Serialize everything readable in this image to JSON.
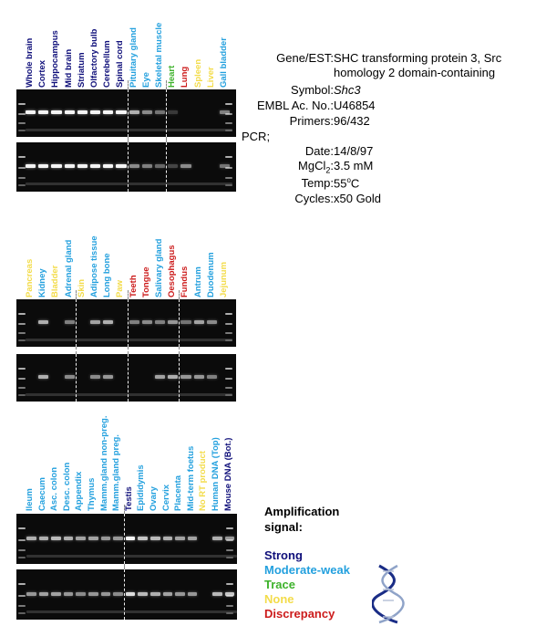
{
  "colors": {
    "strong": "#0f0f7a",
    "moderate": "#23a0de",
    "trace": "#3db22b",
    "none": "#f3dc4a",
    "discrepancy": "#cc1b1b"
  },
  "panels": [
    {
      "labels": [
        {
          "text": "Whole brain",
          "level": "strong"
        },
        {
          "text": "Cortex",
          "level": "strong"
        },
        {
          "text": "Hippocampus",
          "level": "strong"
        },
        {
          "text": "Mid brain",
          "level": "strong"
        },
        {
          "text": "Striatum",
          "level": "strong"
        },
        {
          "text": "Olfactory bulb",
          "level": "strong"
        },
        {
          "text": "Cerebellum",
          "level": "strong"
        },
        {
          "text": "Spinal cord",
          "level": "strong"
        },
        {
          "text": "Pituitary gland",
          "level": "moderate"
        },
        {
          "text": "Eye",
          "level": "moderate"
        },
        {
          "text": "Skeletal muscle",
          "level": "moderate"
        },
        {
          "text": "Heart",
          "level": "trace"
        },
        {
          "text": "Lung",
          "level": "discrepancy"
        },
        {
          "text": "Spleen",
          "level": "none"
        },
        {
          "text": "Liver",
          "level": "none"
        },
        {
          "text": "Gall bladder",
          "level": "moderate"
        }
      ],
      "gel_top": [
        1,
        1,
        1,
        1,
        1,
        1,
        1,
        1,
        0.7,
        0.55,
        0.45,
        0.2,
        0,
        0,
        0,
        0.5
      ],
      "gel_bottom": [
        1,
        1,
        1,
        1,
        1,
        1,
        1,
        1,
        0.55,
        0.5,
        0.4,
        0.25,
        0.55,
        0,
        0,
        0.45
      ]
    },
    {
      "labels": [
        {
          "text": "Pancreas",
          "level": "none"
        },
        {
          "text": "Kidney",
          "level": "moderate"
        },
        {
          "text": "Bladder",
          "level": "none"
        },
        {
          "text": "Adrenal gland",
          "level": "moderate"
        },
        {
          "text": "Skin",
          "level": "none"
        },
        {
          "text": "Adipose tissue",
          "level": "moderate"
        },
        {
          "text": "Long bone",
          "level": "moderate"
        },
        {
          "text": "Paw",
          "level": "none"
        },
        {
          "text": "Teeth",
          "level": "discrepancy"
        },
        {
          "text": "Tongue",
          "level": "discrepancy"
        },
        {
          "text": "Salivary gland",
          "level": "moderate"
        },
        {
          "text": "Oesophagus",
          "level": "discrepancy"
        },
        {
          "text": "Fundus",
          "level": "discrepancy"
        },
        {
          "text": "Antrum",
          "level": "moderate"
        },
        {
          "text": "Duodenum",
          "level": "moderate"
        },
        {
          "text": "Jejunum",
          "level": "none"
        }
      ],
      "gel_top": [
        0,
        0.7,
        0,
        0.5,
        0,
        0.65,
        0.7,
        0,
        0.5,
        0.55,
        0.5,
        0.6,
        0.45,
        0.65,
        0.55,
        0
      ],
      "gel_bottom": [
        0,
        0.7,
        0,
        0.55,
        0,
        0.55,
        0.6,
        0,
        0,
        0,
        0.65,
        0.7,
        0.6,
        0.6,
        0.5,
        0
      ]
    },
    {
      "labels": [
        {
          "text": "Ileum",
          "level": "moderate"
        },
        {
          "text": "Caecum",
          "level": "moderate"
        },
        {
          "text": "Asc. colon",
          "level": "moderate"
        },
        {
          "text": "Desc. colon",
          "level": "moderate"
        },
        {
          "text": "Appendix",
          "level": "moderate"
        },
        {
          "text": "Thymus",
          "level": "moderate"
        },
        {
          "text": "Mamm.gland non-preg.",
          "level": "moderate"
        },
        {
          "text": "Mamm.gland preg.",
          "level": "moderate"
        },
        {
          "text": "Testis",
          "level": "strong"
        },
        {
          "text": "Epididymis",
          "level": "moderate"
        },
        {
          "text": "Ovary",
          "level": "moderate"
        },
        {
          "text": "Cervix",
          "level": "moderate"
        },
        {
          "text": "Placenta",
          "level": "moderate"
        },
        {
          "text": "Mid-term foetus",
          "level": "moderate"
        },
        {
          "text": "No RT product",
          "level": "none"
        },
        {
          "text": "Human DNA (Top)",
          "level": "moderate"
        },
        {
          "text": "Mouse DNA (Bot.)",
          "level": "strong"
        }
      ],
      "gel_top": [
        0.7,
        0.7,
        0.75,
        0.7,
        0.65,
        0.65,
        0.6,
        0.6,
        1,
        0.8,
        0.75,
        0.7,
        0.65,
        0.65,
        0,
        0.7,
        0.6
      ],
      "gel_bottom": [
        0.6,
        0.65,
        0.65,
        0.6,
        0.55,
        0.6,
        0.6,
        0.55,
        0.9,
        0.75,
        0.7,
        0.65,
        0.6,
        0.6,
        0,
        0.75,
        0.8
      ]
    }
  ],
  "info": {
    "gene_label": "Gene/EST:",
    "gene_value_1": "SHC transforming protein 3, Src",
    "gene_value_2": "homology 2 domain-containing",
    "symbol_label": "Symbol:",
    "symbol_value": "Shc3",
    "embl_label": "EMBL Ac. No.:",
    "embl_value": "U46854",
    "primers_label": "Primers:",
    "primers_value": "96/432",
    "pcr_label": "PCR;",
    "date_label": "Date:",
    "date_value": "14/8/97",
    "mgcl_label_main": "MgCl",
    "mgcl_label_sub": "2",
    "mgcl_label_colon": ":",
    "mgcl_value": "3.5 mM",
    "temp_label": "Temp:",
    "temp_value_num": "55",
    "temp_value_sup": "o",
    "temp_value_unit": "C",
    "cycles_label": "Cycles:",
    "cycles_value": "x50 Gold"
  },
  "legend": {
    "title_1": "Amplification",
    "title_2": "signal:",
    "strong": "Strong",
    "moderate": "Moderate-weak",
    "trace": "Trace",
    "none": "None",
    "discrepancy": "Discrepancy",
    "dna_icon": "dna-helix-icon"
  }
}
